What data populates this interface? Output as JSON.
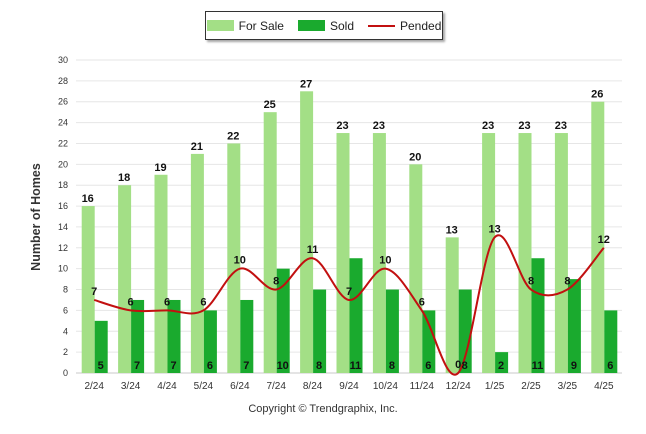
{
  "chart_data": {
    "type": "bar",
    "categories": [
      "2/24",
      "3/24",
      "4/24",
      "5/24",
      "6/24",
      "7/24",
      "8/24",
      "9/24",
      "10/24",
      "11/24",
      "12/24",
      "1/25",
      "2/25",
      "3/25",
      "4/25"
    ],
    "series": [
      {
        "name": "For Sale",
        "kind": "bar",
        "color": "#a3df86",
        "values": [
          16,
          18,
          19,
          21,
          22,
          25,
          27,
          23,
          23,
          20,
          13,
          23,
          23,
          23,
          26
        ]
      },
      {
        "name": "Sold",
        "kind": "bar",
        "color": "#1aaa2e",
        "values": [
          5,
          7,
          7,
          6,
          7,
          10,
          8,
          11,
          8,
          6,
          8,
          2,
          11,
          9,
          6
        ]
      },
      {
        "name": "Pended",
        "kind": "line",
        "color": "#c21010",
        "values": [
          7,
          6,
          6,
          6,
          10,
          8,
          11,
          7,
          10,
          6,
          0,
          13,
          8,
          8,
          12
        ]
      }
    ],
    "ylabel": "Number of Homes",
    "ylim": [
      0,
      30
    ],
    "yticks": [
      0,
      2,
      4,
      6,
      8,
      10,
      12,
      14,
      16,
      18,
      20,
      22,
      24,
      26,
      28,
      30
    ],
    "grid": true,
    "legend": "top-center"
  },
  "footer": {
    "credit": "Copyright © Trendgraphix, Inc."
  }
}
